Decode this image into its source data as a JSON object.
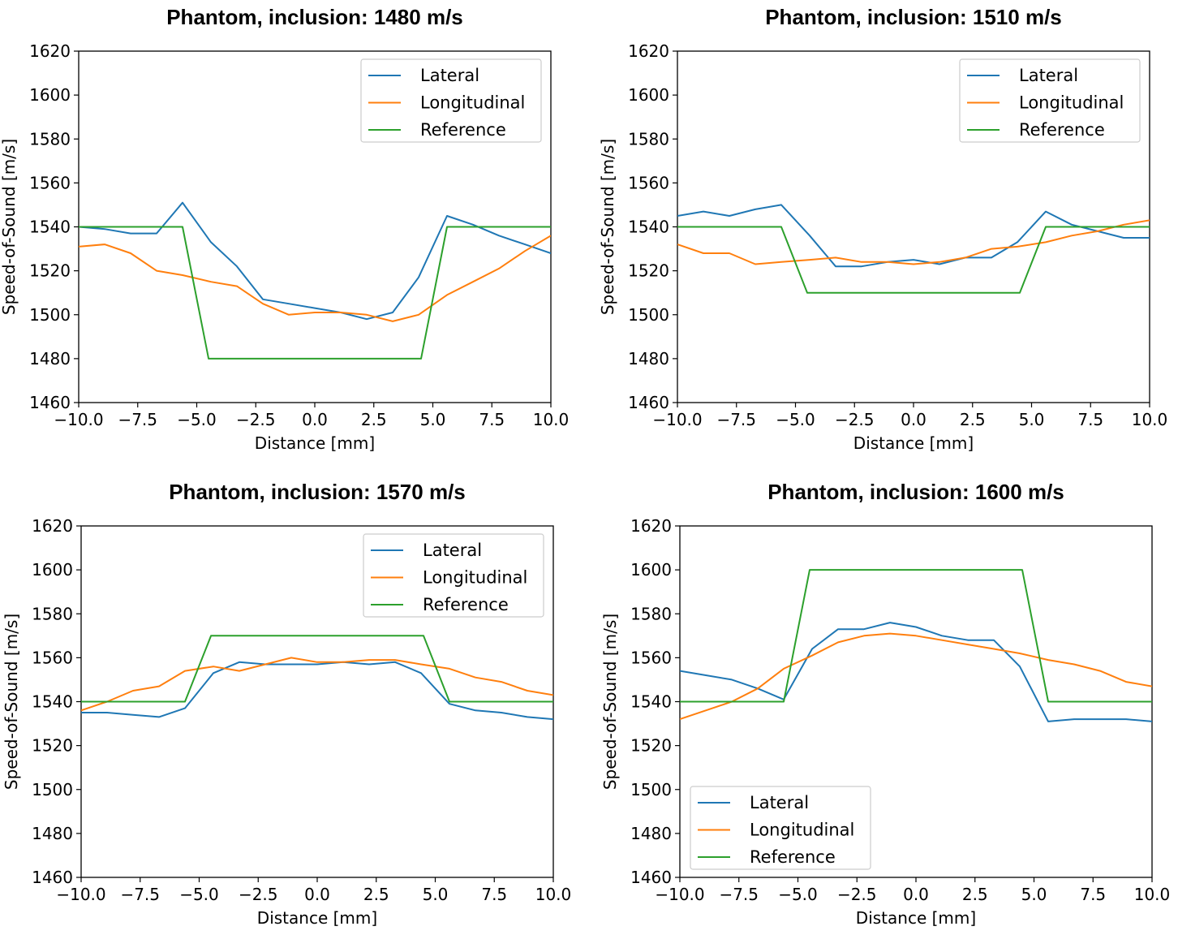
{
  "chart_data": [
    {
      "type": "line",
      "title": "Phantom, inclusion: 1480 m/s",
      "xlabel": "Distance [mm]",
      "ylabel": "Speed-of-Sound [m/s]",
      "xlim": [
        -10,
        10
      ],
      "ylim": [
        1460,
        1620
      ],
      "xticks": [
        "−10.0",
        "−7.5",
        "−5.0",
        "−2.5",
        "0.0",
        "2.5",
        "5.0",
        "7.5",
        "10.0"
      ],
      "yticks": [
        "1460",
        "1480",
        "1500",
        "1520",
        "1540",
        "1560",
        "1580",
        "1600",
        "1620"
      ],
      "legend_position": "top-right",
      "series": [
        {
          "name": "Lateral",
          "color": "#1f77b4",
          "x": [
            -10,
            -8.9,
            -7.8,
            -6.7,
            -5.6,
            -4.4,
            -3.3,
            -2.2,
            -1.1,
            0,
            1.1,
            2.2,
            3.3,
            4.4,
            5.6,
            6.7,
            7.8,
            8.9,
            10
          ],
          "y": [
            1540,
            1539,
            1537,
            1537,
            1551,
            1533,
            1522,
            1507,
            1505,
            1503,
            1501,
            1498,
            1501,
            1517,
            1545,
            1541,
            1536,
            1532,
            1528
          ]
        },
        {
          "name": "Longitudinal",
          "color": "#ff7f0e",
          "x": [
            -10,
            -8.9,
            -7.8,
            -6.7,
            -5.6,
            -4.4,
            -3.3,
            -2.2,
            -1.1,
            0,
            1.1,
            2.2,
            3.3,
            4.4,
            5.6,
            6.7,
            7.8,
            8.9,
            10
          ],
          "y": [
            1531,
            1532,
            1528,
            1520,
            1518,
            1515,
            1513,
            1505,
            1500,
            1501,
            1501,
            1500,
            1497,
            1500,
            1509,
            1515,
            1521,
            1529,
            1536
          ]
        },
        {
          "name": "Reference",
          "color": "#2ca02c",
          "x": [
            -10,
            -5.6,
            -4.5,
            4.5,
            5.6,
            10
          ],
          "y": [
            1540,
            1540,
            1480,
            1480,
            1540,
            1540
          ]
        }
      ]
    },
    {
      "type": "line",
      "title": "Phantom, inclusion: 1510 m/s",
      "xlabel": "Distance [mm]",
      "ylabel": "Speed-of-Sound [m/s]",
      "xlim": [
        -10,
        10
      ],
      "ylim": [
        1460,
        1620
      ],
      "xticks": [
        "−10.0",
        "−7.5",
        "−5.0",
        "−2.5",
        "0.0",
        "2.5",
        "5.0",
        "7.5",
        "10.0"
      ],
      "yticks": [
        "1460",
        "1480",
        "1500",
        "1520",
        "1540",
        "1560",
        "1580",
        "1600",
        "1620"
      ],
      "legend_position": "top-right",
      "series": [
        {
          "name": "Lateral",
          "color": "#1f77b4",
          "x": [
            -10,
            -8.9,
            -7.8,
            -6.7,
            -5.6,
            -4.4,
            -3.3,
            -2.2,
            -1.1,
            0,
            1.1,
            2.2,
            3.3,
            4.4,
            5.6,
            6.7,
            7.8,
            8.9,
            10
          ],
          "y": [
            1545,
            1547,
            1545,
            1548,
            1550,
            1536,
            1522,
            1522,
            1524,
            1525,
            1523,
            1526,
            1526,
            1533,
            1547,
            1541,
            1538,
            1535,
            1535
          ]
        },
        {
          "name": "Longitudinal",
          "color": "#ff7f0e",
          "x": [
            -10,
            -8.9,
            -7.8,
            -6.7,
            -5.6,
            -4.4,
            -3.3,
            -2.2,
            -1.1,
            0,
            1.1,
            2.2,
            3.3,
            4.4,
            5.6,
            6.7,
            7.8,
            8.9,
            10
          ],
          "y": [
            1532,
            1528,
            1528,
            1523,
            1524,
            1525,
            1526,
            1524,
            1524,
            1523,
            1524,
            1526,
            1530,
            1531,
            1533,
            1536,
            1538,
            1541,
            1543
          ]
        },
        {
          "name": "Reference",
          "color": "#2ca02c",
          "x": [
            -10,
            -5.6,
            -4.5,
            4.5,
            5.6,
            10
          ],
          "y": [
            1540,
            1540,
            1510,
            1510,
            1540,
            1540
          ]
        }
      ]
    },
    {
      "type": "line",
      "title": "Phantom, inclusion: 1570 m/s",
      "xlabel": "Distance [mm]",
      "ylabel": "Speed-of-Sound [m/s]",
      "xlim": [
        -10,
        10
      ],
      "ylim": [
        1460,
        1620
      ],
      "xticks": [
        "−10.0",
        "−7.5",
        "−5.0",
        "−2.5",
        "0.0",
        "2.5",
        "5.0",
        "7.5",
        "10.0"
      ],
      "yticks": [
        "1460",
        "1480",
        "1500",
        "1520",
        "1540",
        "1560",
        "1580",
        "1600",
        "1620"
      ],
      "legend_position": "top-right",
      "series": [
        {
          "name": "Lateral",
          "color": "#1f77b4",
          "x": [
            -10,
            -8.9,
            -7.8,
            -6.7,
            -5.6,
            -4.4,
            -3.3,
            -2.2,
            -1.1,
            0,
            1.1,
            2.2,
            3.3,
            4.4,
            5.6,
            6.7,
            7.8,
            8.9,
            10
          ],
          "y": [
            1535,
            1535,
            1534,
            1533,
            1537,
            1553,
            1558,
            1557,
            1557,
            1557,
            1558,
            1557,
            1558,
            1553,
            1539,
            1536,
            1535,
            1533,
            1532
          ]
        },
        {
          "name": "Longitudinal",
          "color": "#ff7f0e",
          "x": [
            -10,
            -8.9,
            -7.8,
            -6.7,
            -5.6,
            -4.4,
            -3.3,
            -2.2,
            -1.1,
            0,
            1.1,
            2.2,
            3.3,
            4.4,
            5.6,
            6.7,
            7.8,
            8.9,
            10
          ],
          "y": [
            1536,
            1540,
            1545,
            1547,
            1554,
            1556,
            1554,
            1557,
            1560,
            1558,
            1558,
            1559,
            1559,
            1557,
            1555,
            1551,
            1549,
            1545,
            1543
          ]
        },
        {
          "name": "Reference",
          "color": "#2ca02c",
          "x": [
            -10,
            -5.6,
            -4.5,
            4.5,
            5.6,
            10
          ],
          "y": [
            1540,
            1540,
            1570,
            1570,
            1540,
            1540
          ]
        }
      ]
    },
    {
      "type": "line",
      "title": "Phantom, inclusion: 1600 m/s",
      "xlabel": "Distance [mm]",
      "ylabel": "Speed-of-Sound [m/s]",
      "xlim": [
        -10,
        10
      ],
      "ylim": [
        1460,
        1620
      ],
      "xticks": [
        "−10.0",
        "−7.5",
        "−5.0",
        "−2.5",
        "0.0",
        "2.5",
        "5.0",
        "7.5",
        "10.0"
      ],
      "yticks": [
        "1460",
        "1480",
        "1500",
        "1520",
        "1540",
        "1560",
        "1580",
        "1600",
        "1620"
      ],
      "legend_position": "bottom-left",
      "series": [
        {
          "name": "Lateral",
          "color": "#1f77b4",
          "x": [
            -10,
            -8.9,
            -7.8,
            -6.7,
            -5.6,
            -4.4,
            -3.3,
            -2.2,
            -1.1,
            0,
            1.1,
            2.2,
            3.3,
            4.4,
            5.6,
            6.7,
            7.8,
            8.9,
            10
          ],
          "y": [
            1554,
            1552,
            1550,
            1546,
            1541,
            1564,
            1573,
            1573,
            1576,
            1574,
            1570,
            1568,
            1568,
            1556,
            1531,
            1532,
            1532,
            1532,
            1531
          ]
        },
        {
          "name": "Longitudinal",
          "color": "#ff7f0e",
          "x": [
            -10,
            -8.9,
            -7.8,
            -6.7,
            -5.6,
            -4.4,
            -3.3,
            -2.2,
            -1.1,
            0,
            1.1,
            2.2,
            3.3,
            4.4,
            5.6,
            6.7,
            7.8,
            8.9,
            10
          ],
          "y": [
            1532,
            1536,
            1540,
            1546,
            1555,
            1561,
            1567,
            1570,
            1571,
            1570,
            1568,
            1566,
            1564,
            1562,
            1559,
            1557,
            1554,
            1549,
            1547
          ]
        },
        {
          "name": "Reference",
          "color": "#2ca02c",
          "x": [
            -10,
            -5.6,
            -4.5,
            4.5,
            5.6,
            10
          ],
          "y": [
            1540,
            1540,
            1600,
            1600,
            1540,
            1540
          ]
        }
      ]
    }
  ]
}
